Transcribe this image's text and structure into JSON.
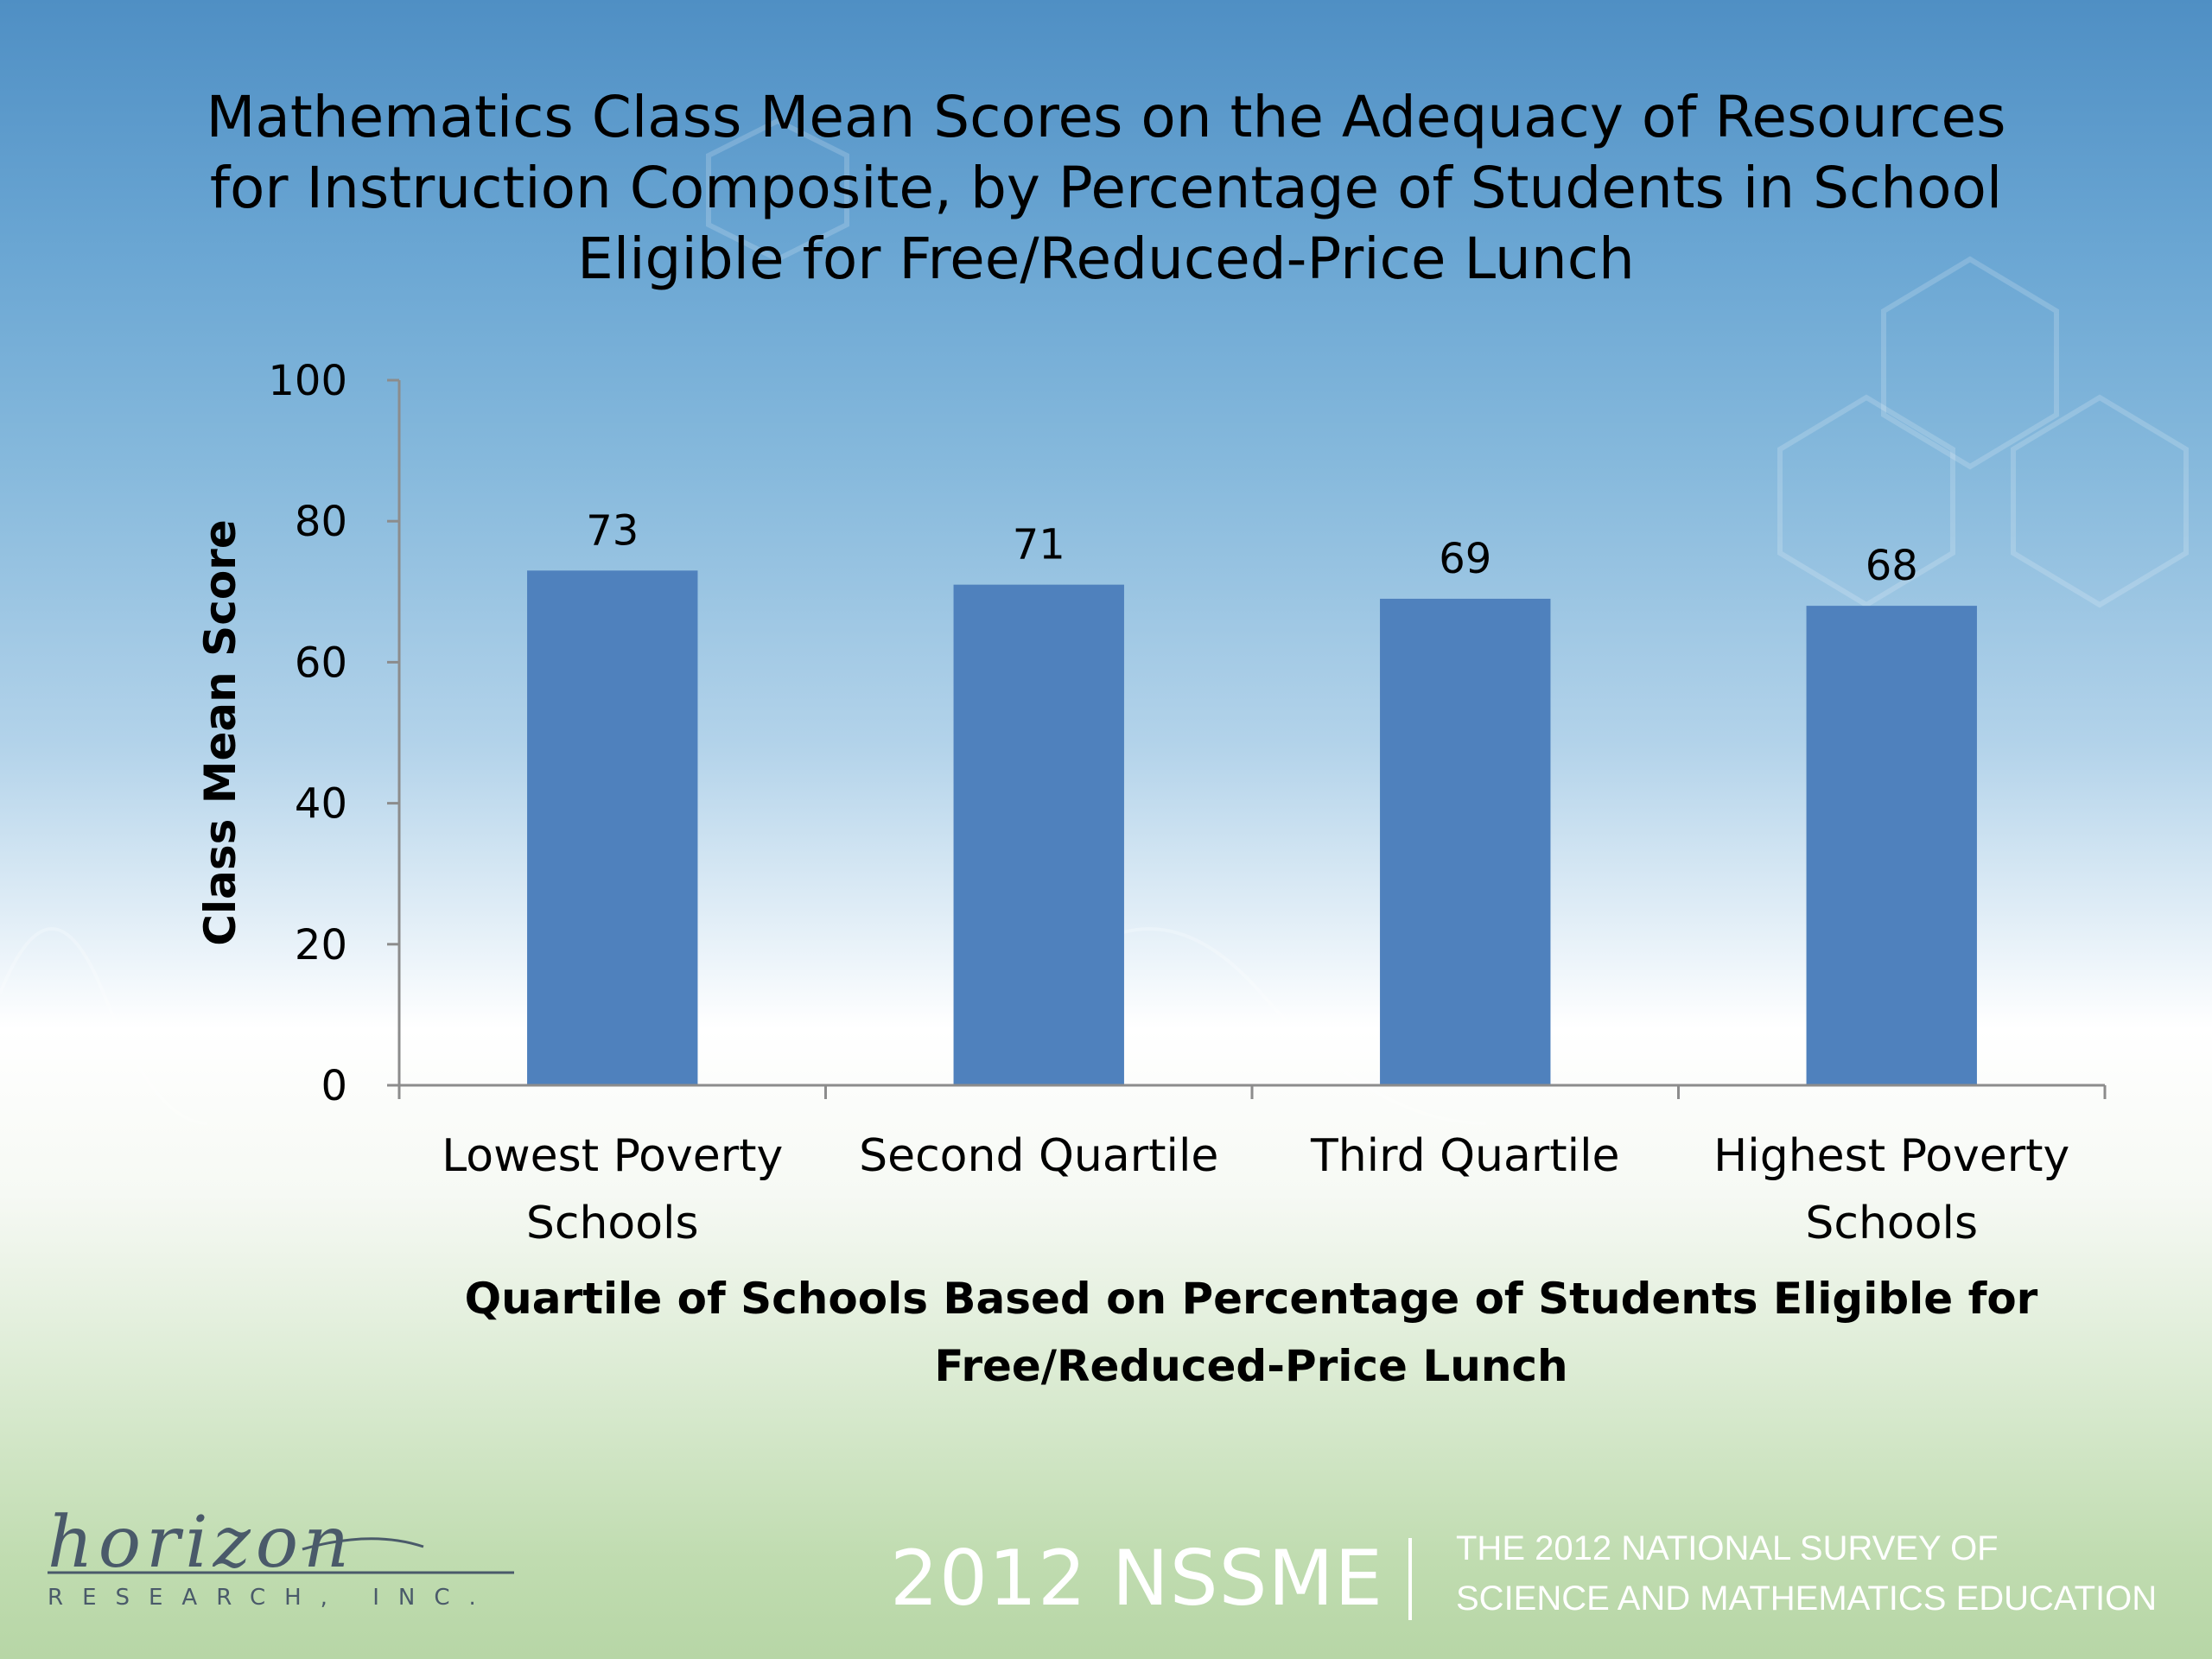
{
  "title": "Mathematics Class Mean Scores on the Adequacy of Resources for Instruction Composite, by Percentage of Students in School Eligible for Free/Reduced-Price Lunch",
  "title_lines": [
    "Mathematics Class Mean Scores on the Adequacy of Resources",
    "for Instruction Composite, by Percentage of Students in School",
    "Eligible for Free/Reduced-Price Lunch"
  ],
  "chart_data": {
    "type": "bar",
    "categories": [
      [
        "Lowest Poverty",
        "Schools"
      ],
      [
        "Second Quartile"
      ],
      [
        "Third Quartile"
      ],
      [
        "Highest Poverty",
        "Schools"
      ]
    ],
    "values": [
      73,
      71,
      69,
      68
    ],
    "ylabel": "Class Mean Score",
    "xlabel_lines": [
      "Quartile of Schools Based on Percentage of Students Eligible for",
      "Free/Reduced-Price Lunch"
    ],
    "ylim": [
      0,
      100
    ],
    "yticks": [
      0,
      20,
      40,
      60,
      80,
      100
    ],
    "bar_color": "#4f81bd",
    "grid": false,
    "legend": "none"
  },
  "footer": {
    "logo_script": "horizon",
    "logo_sub": "RESEARCH, INC.",
    "brand": "2012 NSSME",
    "survey_lines": [
      "THE 2012 NATIONAL SURVEY OF",
      "SCIENCE AND MATHEMATICS EDUCATION"
    ]
  }
}
